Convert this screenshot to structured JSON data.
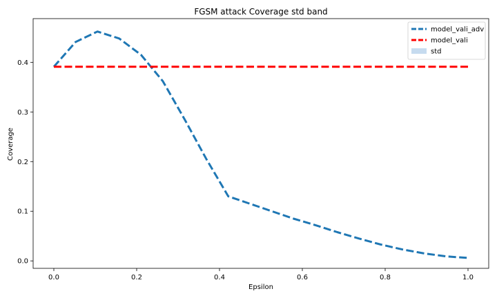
{
  "chart_data": {
    "type": "line",
    "title": "FGSM attack Coverage std band",
    "xlabel": "Epsilon",
    "ylabel": "Coverage",
    "xlim": [
      -0.05,
      1.05
    ],
    "ylim": [
      -0.015,
      0.488
    ],
    "x_ticks": [
      "0.0",
      "0.2",
      "0.4",
      "0.6",
      "0.8",
      "1.0"
    ],
    "y_ticks": [
      "0.0",
      "0.1",
      "0.2",
      "0.3",
      "0.4"
    ],
    "grid": false,
    "legend_position": "upper right",
    "series": [
      {
        "name": "model_vali_adv",
        "color": "#1f77b4",
        "style": "dashed",
        "x": [
          0.0,
          0.0526,
          0.1053,
          0.1579,
          0.2105,
          0.2632,
          0.3158,
          0.3684,
          0.4211,
          0.4737,
          0.5263,
          0.5789,
          0.6316,
          0.6842,
          0.7368,
          0.7895,
          0.8421,
          0.8947,
          0.9474,
          1.0
        ],
        "y": [
          0.391,
          0.441,
          0.462,
          0.448,
          0.415,
          0.362,
          0.285,
          0.205,
          0.13,
          0.115,
          0.1,
          0.085,
          0.072,
          0.058,
          0.045,
          0.033,
          0.023,
          0.015,
          0.009,
          0.006
        ]
      },
      {
        "name": "model_vali",
        "color": "#ff0000",
        "style": "dashed",
        "x": [
          0.0,
          1.0
        ],
        "y": [
          0.391,
          0.391
        ]
      }
    ],
    "legend": [
      {
        "label": "model_vali_adv",
        "kind": "line",
        "color": "#1f77b4"
      },
      {
        "label": "model_vali",
        "kind": "line",
        "color": "#ff0000"
      },
      {
        "label": "std",
        "kind": "patch",
        "color": "#c6dbef"
      }
    ]
  }
}
